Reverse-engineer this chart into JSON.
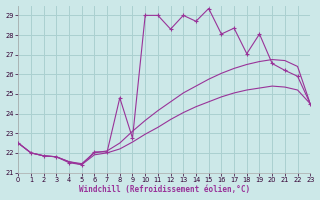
{
  "xlabel": "Windchill (Refroidissement éolien,°C)",
  "bg_color": "#cce8e8",
  "grid_color": "#aad0d0",
  "line_color": "#993399",
  "xlim": [
    0,
    23
  ],
  "ylim": [
    21,
    29.5
  ],
  "yticks": [
    21,
    22,
    23,
    24,
    25,
    26,
    27,
    28,
    29
  ],
  "xticks": [
    0,
    1,
    2,
    3,
    4,
    5,
    6,
    7,
    8,
    9,
    10,
    11,
    12,
    13,
    14,
    15,
    16,
    17,
    18,
    19,
    20,
    21,
    22,
    23
  ],
  "s1_x": [
    0,
    1,
    2,
    3,
    4,
    5,
    6,
    7,
    8,
    9,
    10,
    11,
    12,
    13,
    14,
    15,
    16,
    17,
    18,
    19,
    20,
    21,
    22,
    23
  ],
  "s1_y": [
    22.5,
    22.0,
    21.85,
    21.8,
    21.5,
    21.4,
    22.05,
    22.05,
    24.8,
    22.75,
    29.0,
    29.0,
    28.3,
    29.0,
    28.7,
    29.35,
    28.05,
    28.35,
    27.05,
    28.05,
    26.55,
    26.2,
    25.9,
    24.5
  ],
  "s2_x": [
    0,
    1,
    2,
    3,
    4,
    5,
    6,
    7,
    8,
    9,
    10,
    11,
    12,
    13,
    14,
    15,
    16,
    17,
    18,
    19,
    20,
    21,
    22,
    23
  ],
  "s2_y": [
    22.5,
    22.0,
    21.85,
    21.8,
    21.55,
    21.45,
    22.0,
    22.1,
    22.5,
    23.1,
    23.65,
    24.15,
    24.6,
    25.05,
    25.4,
    25.75,
    26.05,
    26.3,
    26.5,
    26.65,
    26.75,
    26.7,
    26.4,
    24.5
  ],
  "s3_x": [
    0,
    1,
    2,
    3,
    4,
    5,
    6,
    7,
    8,
    9,
    10,
    11,
    12,
    13,
    14,
    15,
    16,
    17,
    18,
    19,
    20,
    21,
    22,
    23
  ],
  "s3_y": [
    22.5,
    22.0,
    21.85,
    21.8,
    21.55,
    21.4,
    21.9,
    22.0,
    22.2,
    22.55,
    22.95,
    23.3,
    23.7,
    24.05,
    24.35,
    24.6,
    24.85,
    25.05,
    25.2,
    25.3,
    25.4,
    25.35,
    25.2,
    24.5
  ]
}
